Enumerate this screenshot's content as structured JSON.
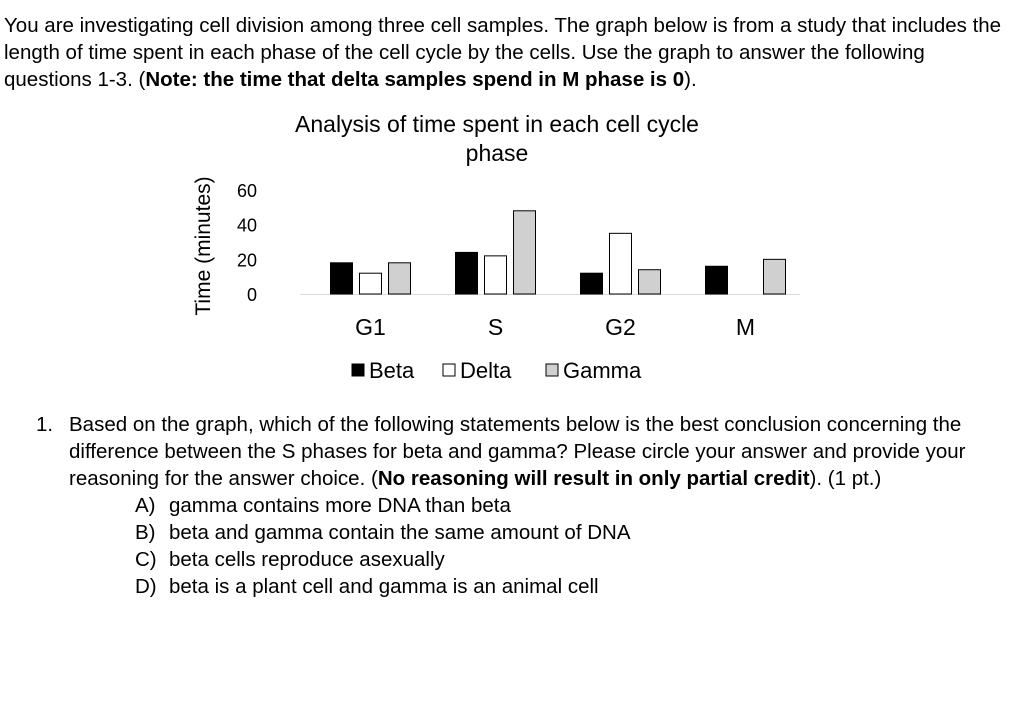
{
  "intro": {
    "text_1": "You are investigating cell division among three cell samples. The graph below is from a study that includes the length of time spent in each phase of the cell cycle by the cells. Use the graph to answer the following questions 1-3. (",
    "note_bold": "Note: the time that delta samples spend in M phase is 0",
    "text_2": ")."
  },
  "chart_data": {
    "type": "bar",
    "title": "Analysis of time spent in each cell cycle phase",
    "title_lines": [
      "Analysis of time spent in each cell cycle",
      "phase"
    ],
    "xlabel": "",
    "ylabel": "Time (minutes)",
    "ylim": [
      0,
      60
    ],
    "yticks": [
      "0",
      "20",
      "40",
      "60"
    ],
    "categories": [
      "G1",
      "S",
      "G2",
      "M"
    ],
    "series": [
      {
        "name": "Beta",
        "values": [
          18,
          24,
          12,
          16
        ],
        "color": "#000000"
      },
      {
        "name": "Delta",
        "values": [
          12,
          22,
          35,
          0
        ],
        "color": "#ffffff"
      },
      {
        "name": "Gamma",
        "values": [
          18,
          48,
          14,
          20
        ],
        "color": "#d0d0d0"
      }
    ],
    "legend_position": "bottom",
    "grid": false
  },
  "question": {
    "number": "1.",
    "text_1": "Based on the graph, which of the following statements below is the best conclusion concerning the difference between the S phases for beta and gamma? Please circle your answer and provide your reasoning for the answer choice. (",
    "bold": "No reasoning will result in only partial credit",
    "text_2": "). (1 pt.)",
    "options": [
      {
        "letter": "A)",
        "text": "gamma contains more DNA than beta"
      },
      {
        "letter": "B)",
        "text": "beta and gamma contain the same amount of DNA"
      },
      {
        "letter": "C)",
        "text": "beta cells reproduce asexually"
      },
      {
        "letter": "D)",
        "text": "beta is a plant cell and gamma is an animal cell"
      }
    ]
  }
}
